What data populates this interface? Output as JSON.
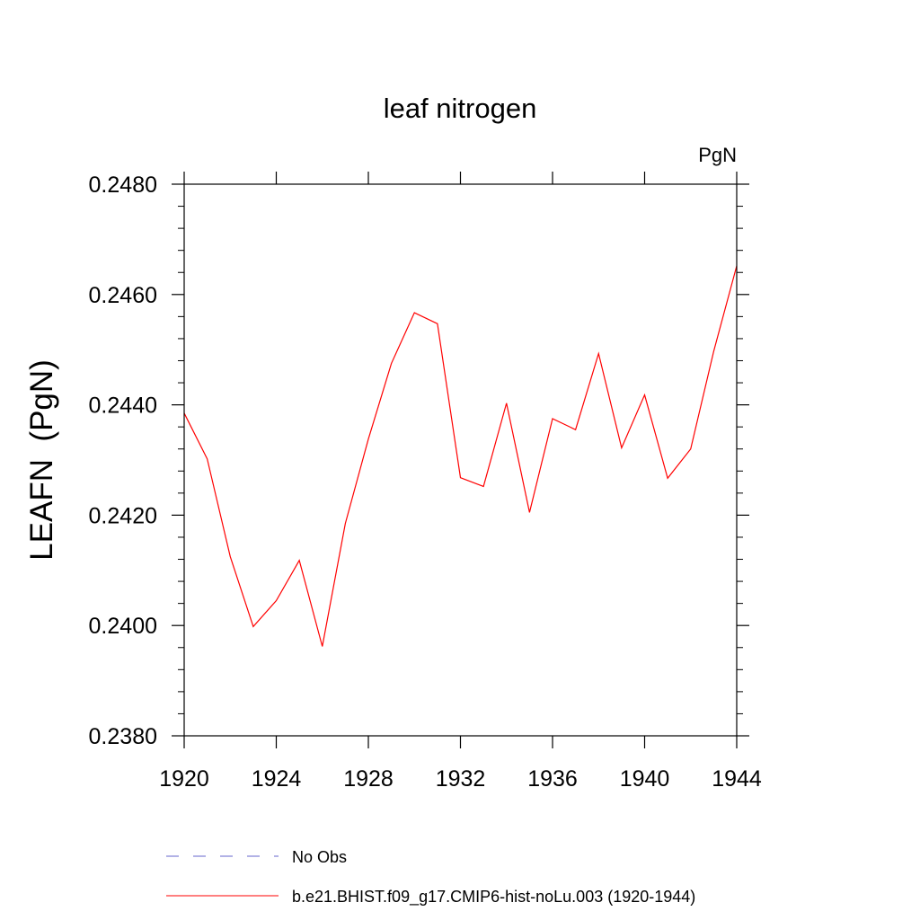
{
  "chart_data": {
    "type": "line",
    "title": "leaf nitrogen",
    "units": "PgN",
    "ylabel": "LEAFN  (PgN)",
    "xlabel": "",
    "xlim": [
      1920,
      1944
    ],
    "ylim": [
      0.238,
      0.248
    ],
    "x_ticks": [
      1920,
      1924,
      1928,
      1932,
      1936,
      1940,
      1944
    ],
    "x_tick_labels": [
      "1920",
      "1924",
      "1928",
      "1932",
      "1936",
      "1940",
      "1944"
    ],
    "y_ticks": [
      0.238,
      0.24,
      0.242,
      0.244,
      0.246,
      0.248
    ],
    "y_tick_labels": [
      "0.2380",
      "0.2400",
      "0.2420",
      "0.2440",
      "0.2460",
      "0.2480"
    ],
    "grid": false,
    "legend_position": "bottom",
    "series": [
      {
        "name": "b.e21.BHIST.f09_g17.CMIP6-hist-noLu.003 (1920-1944)",
        "color": "#ff0000",
        "dash": "solid",
        "x": [
          1920,
          1921,
          1922,
          1923,
          1924,
          1925,
          1926,
          1927,
          1928,
          1929,
          1930,
          1931,
          1932,
          1933,
          1934,
          1935,
          1936,
          1937,
          1938,
          1939,
          1940,
          1941,
          1942,
          1943,
          1944
        ],
        "values": [
          0.24385,
          0.24302,
          0.24125,
          0.23998,
          0.24045,
          0.24118,
          0.23962,
          0.24185,
          0.24338,
          0.24475,
          0.24567,
          0.24547,
          0.24268,
          0.24252,
          0.24403,
          0.24205,
          0.24375,
          0.24355,
          0.24493,
          0.24322,
          0.24418,
          0.24267,
          0.2432,
          0.24497,
          0.24652
        ]
      }
    ],
    "legend": [
      {
        "label": "No Obs",
        "color": "#6666cc",
        "dash": "dashed"
      },
      {
        "label": "b.e21.BHIST.f09_g17.CMIP6-hist-noLu.003 (1920-1944)",
        "color": "#ff0000",
        "dash": "solid"
      }
    ]
  }
}
